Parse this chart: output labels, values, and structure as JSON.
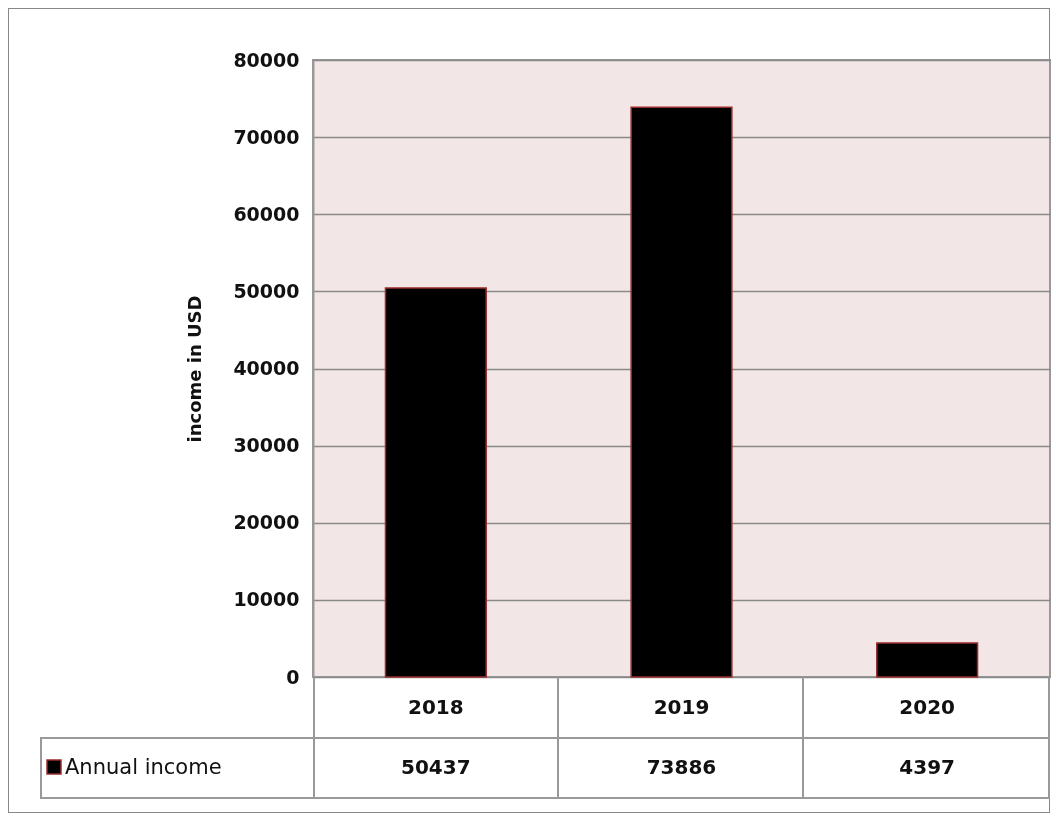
{
  "chart_data": {
    "type": "bar",
    "ylabel": "income in USD",
    "categories": [
      "2018",
      "2019",
      "2020"
    ],
    "series": [
      {
        "name": "Annual income",
        "color": "#000000",
        "values": [
          50437,
          73886,
          4397
        ]
      }
    ],
    "ylim": [
      0,
      80000
    ],
    "yticks": [
      0,
      10000,
      20000,
      30000,
      40000,
      50000,
      60000,
      70000,
      80000
    ],
    "grid": "y",
    "data_labels": true,
    "legend": "bottom"
  }
}
